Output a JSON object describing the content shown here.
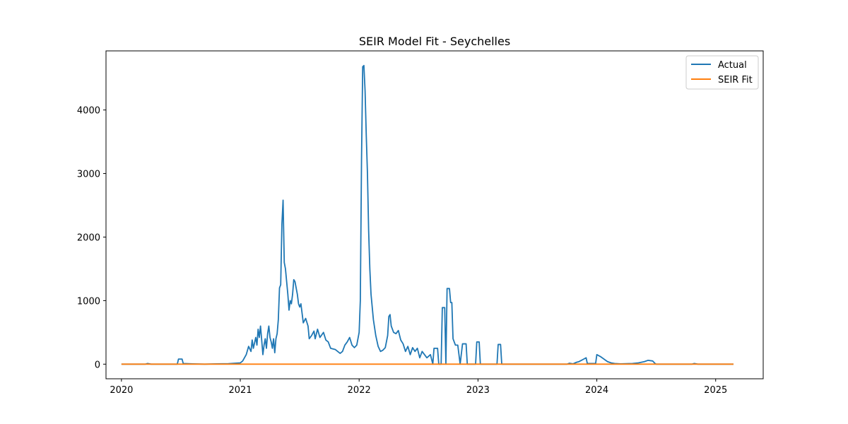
{
  "chart_data": {
    "type": "line",
    "title": "SEIR Model Fit - Seychelles",
    "xlabel": "",
    "ylabel": "",
    "xlim": [
      2019.87,
      2025.4
    ],
    "ylim": [
      -230,
      4930
    ],
    "x_ticks": [
      {
        "value": 2020,
        "label": "2020"
      },
      {
        "value": 2021,
        "label": "2021"
      },
      {
        "value": 2022,
        "label": "2022"
      },
      {
        "value": 2023,
        "label": "2023"
      },
      {
        "value": 2024,
        "label": "2024"
      },
      {
        "value": 2025,
        "label": "2025"
      }
    ],
    "y_ticks": [
      {
        "value": 0,
        "label": "0"
      },
      {
        "value": 1000,
        "label": "1000"
      },
      {
        "value": 2000,
        "label": "2000"
      },
      {
        "value": 3000,
        "label": "3000"
      },
      {
        "value": 4000,
        "label": "4000"
      }
    ],
    "grid": false,
    "legend_position": "top-right",
    "series": [
      {
        "name": "Actual",
        "color": "#1f77b4",
        "points": [
          [
            2020.0,
            0
          ],
          [
            2020.2,
            0
          ],
          [
            2020.22,
            10
          ],
          [
            2020.25,
            0
          ],
          [
            2020.47,
            0
          ],
          [
            2020.48,
            80
          ],
          [
            2020.51,
            80
          ],
          [
            2020.52,
            10
          ],
          [
            2020.6,
            5
          ],
          [
            2020.7,
            0
          ],
          [
            2020.8,
            5
          ],
          [
            2020.9,
            8
          ],
          [
            2021.0,
            20
          ],
          [
            2021.02,
            50
          ],
          [
            2021.05,
            150
          ],
          [
            2021.07,
            280
          ],
          [
            2021.09,
            200
          ],
          [
            2021.1,
            380
          ],
          [
            2021.11,
            250
          ],
          [
            2021.13,
            420
          ],
          [
            2021.14,
            300
          ],
          [
            2021.15,
            550
          ],
          [
            2021.16,
            420
          ],
          [
            2021.17,
            600
          ],
          [
            2021.18,
            380
          ],
          [
            2021.19,
            150
          ],
          [
            2021.2,
            300
          ],
          [
            2021.21,
            400
          ],
          [
            2021.22,
            250
          ],
          [
            2021.23,
            480
          ],
          [
            2021.24,
            600
          ],
          [
            2021.25,
            420
          ],
          [
            2021.26,
            350
          ],
          [
            2021.27,
            250
          ],
          [
            2021.28,
            400
          ],
          [
            2021.29,
            180
          ],
          [
            2021.3,
            400
          ],
          [
            2021.31,
            480
          ],
          [
            2021.32,
            700
          ],
          [
            2021.33,
            1200
          ],
          [
            2021.34,
            1250
          ],
          [
            2021.35,
            2200
          ],
          [
            2021.36,
            2580
          ],
          [
            2021.37,
            1600
          ],
          [
            2021.38,
            1500
          ],
          [
            2021.39,
            1300
          ],
          [
            2021.4,
            1100
          ],
          [
            2021.41,
            850
          ],
          [
            2021.42,
            1000
          ],
          [
            2021.43,
            950
          ],
          [
            2021.44,
            1100
          ],
          [
            2021.45,
            1330
          ],
          [
            2021.46,
            1300
          ],
          [
            2021.47,
            1200
          ],
          [
            2021.48,
            1100
          ],
          [
            2021.49,
            950
          ],
          [
            2021.5,
            900
          ],
          [
            2021.51,
            950
          ],
          [
            2021.52,
            800
          ],
          [
            2021.53,
            650
          ],
          [
            2021.55,
            720
          ],
          [
            2021.57,
            600
          ],
          [
            2021.58,
            400
          ],
          [
            2021.6,
            450
          ],
          [
            2021.62,
            520
          ],
          [
            2021.63,
            400
          ],
          [
            2021.65,
            550
          ],
          [
            2021.67,
            420
          ],
          [
            2021.7,
            500
          ],
          [
            2021.72,
            380
          ],
          [
            2021.74,
            350
          ],
          [
            2021.76,
            250
          ],
          [
            2021.8,
            230
          ],
          [
            2021.84,
            170
          ],
          [
            2021.86,
            200
          ],
          [
            2021.88,
            300
          ],
          [
            2021.9,
            350
          ],
          [
            2021.92,
            420
          ],
          [
            2021.94,
            300
          ],
          [
            2021.96,
            260
          ],
          [
            2021.98,
            300
          ],
          [
            2022.0,
            500
          ],
          [
            2022.01,
            1000
          ],
          [
            2022.02,
            3200
          ],
          [
            2022.03,
            4680
          ],
          [
            2022.04,
            4700
          ],
          [
            2022.05,
            4300
          ],
          [
            2022.06,
            3600
          ],
          [
            2022.07,
            3000
          ],
          [
            2022.08,
            2100
          ],
          [
            2022.09,
            1500
          ],
          [
            2022.1,
            1100
          ],
          [
            2022.11,
            900
          ],
          [
            2022.12,
            700
          ],
          [
            2022.14,
            450
          ],
          [
            2022.16,
            280
          ],
          [
            2022.18,
            200
          ],
          [
            2022.2,
            220
          ],
          [
            2022.22,
            260
          ],
          [
            2022.24,
            450
          ],
          [
            2022.25,
            750
          ],
          [
            2022.26,
            780
          ],
          [
            2022.27,
            600
          ],
          [
            2022.29,
            500
          ],
          [
            2022.31,
            480
          ],
          [
            2022.33,
            530
          ],
          [
            2022.35,
            380
          ],
          [
            2022.37,
            320
          ],
          [
            2022.39,
            200
          ],
          [
            2022.41,
            280
          ],
          [
            2022.43,
            150
          ],
          [
            2022.45,
            260
          ],
          [
            2022.47,
            200
          ],
          [
            2022.49,
            250
          ],
          [
            2022.51,
            100
          ],
          [
            2022.53,
            200
          ],
          [
            2022.55,
            150
          ],
          [
            2022.57,
            100
          ],
          [
            2022.6,
            150
          ],
          [
            2022.62,
            0
          ],
          [
            2022.63,
            250
          ],
          [
            2022.66,
            250
          ],
          [
            2022.67,
            0
          ],
          [
            2022.69,
            0
          ],
          [
            2022.7,
            890
          ],
          [
            2022.72,
            890
          ],
          [
            2022.73,
            0
          ],
          [
            2022.74,
            1190
          ],
          [
            2022.76,
            1190
          ],
          [
            2022.77,
            970
          ],
          [
            2022.78,
            970
          ],
          [
            2022.79,
            400
          ],
          [
            2022.81,
            300
          ],
          [
            2022.83,
            300
          ],
          [
            2022.85,
            0
          ],
          [
            2022.87,
            320
          ],
          [
            2022.9,
            320
          ],
          [
            2022.91,
            0
          ],
          [
            2022.98,
            0
          ],
          [
            2022.99,
            350
          ],
          [
            2023.01,
            350
          ],
          [
            2023.02,
            0
          ],
          [
            2023.16,
            0
          ],
          [
            2023.17,
            310
          ],
          [
            2023.19,
            310
          ],
          [
            2023.2,
            0
          ],
          [
            2023.75,
            0
          ],
          [
            2023.77,
            15
          ],
          [
            2023.8,
            5
          ],
          [
            2023.83,
            30
          ],
          [
            2023.85,
            40
          ],
          [
            2023.87,
            60
          ],
          [
            2023.89,
            80
          ],
          [
            2023.91,
            100
          ],
          [
            2023.92,
            10
          ],
          [
            2023.99,
            10
          ],
          [
            2024.0,
            150
          ],
          [
            2024.03,
            120
          ],
          [
            2024.06,
            80
          ],
          [
            2024.09,
            40
          ],
          [
            2024.12,
            20
          ],
          [
            2024.15,
            10
          ],
          [
            2024.2,
            5
          ],
          [
            2024.3,
            10
          ],
          [
            2024.35,
            20
          ],
          [
            2024.4,
            40
          ],
          [
            2024.43,
            60
          ],
          [
            2024.47,
            50
          ],
          [
            2024.49,
            10
          ],
          [
            2024.5,
            0
          ],
          [
            2024.8,
            0
          ],
          [
            2024.82,
            10
          ],
          [
            2024.85,
            0
          ],
          [
            2025.15,
            0
          ]
        ]
      },
      {
        "name": "SEIR Fit",
        "color": "#ff7f0e",
        "points": [
          [
            2020.0,
            0
          ],
          [
            2025.15,
            0
          ]
        ]
      }
    ]
  }
}
